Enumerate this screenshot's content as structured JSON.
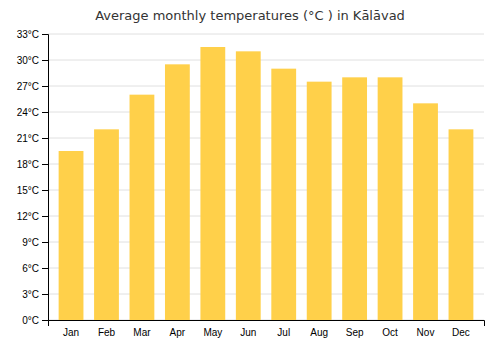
{
  "chart_data": {
    "type": "bar",
    "title": "Average monthly temperatures (°C ) in Kālāvad",
    "categories": [
      "Jan",
      "Feb",
      "Mar",
      "Apr",
      "May",
      "Jun",
      "Jul",
      "Aug",
      "Sep",
      "Oct",
      "Nov",
      "Dec"
    ],
    "values": [
      19.5,
      22.0,
      26.0,
      29.5,
      31.5,
      31.0,
      29.0,
      27.5,
      28.0,
      28.0,
      25.0,
      22.0
    ],
    "color": "#FFD04A",
    "ylim": [
      0,
      33
    ],
    "yticks": [
      {
        "value": 0,
        "label": "0°C"
      },
      {
        "value": 3,
        "label": "3°C"
      },
      {
        "value": 6,
        "label": "6°C"
      },
      {
        "value": 9,
        "label": "9°C"
      },
      {
        "value": 12,
        "label": "12°C"
      },
      {
        "value": 15,
        "label": "15°C"
      },
      {
        "value": 18,
        "label": "18°C"
      },
      {
        "value": 21,
        "label": "21°C"
      },
      {
        "value": 24,
        "label": "24°C"
      },
      {
        "value": 27,
        "label": "27°C"
      },
      {
        "value": 30,
        "label": "30°C"
      },
      {
        "value": 33,
        "label": "33°C"
      }
    ],
    "grid": true
  }
}
